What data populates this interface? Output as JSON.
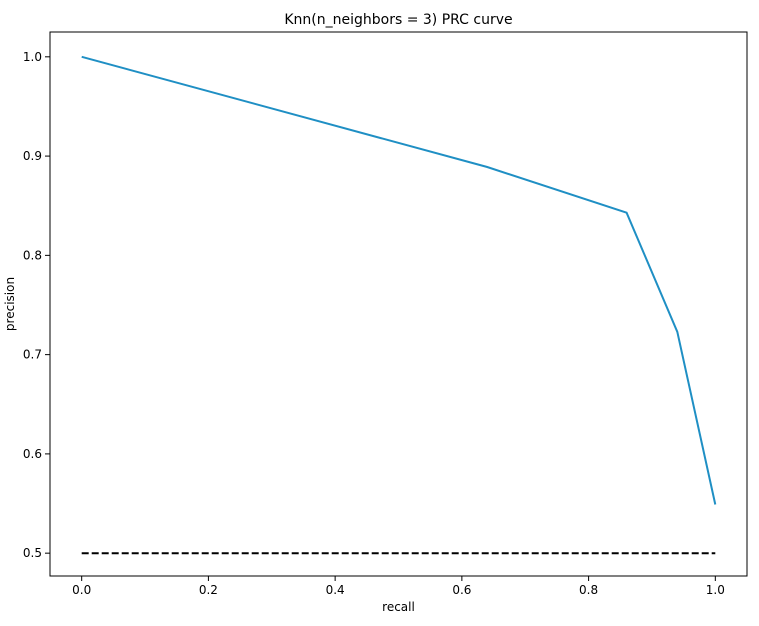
{
  "chart_data": {
    "type": "line",
    "title": "Knn(n_neighbors = 3) PRC curve",
    "xlabel": "recall",
    "ylabel": "precision",
    "xlim": [
      -0.05,
      1.05
    ],
    "ylim": [
      0.477,
      1.025
    ],
    "xticks": [
      0.0,
      0.2,
      0.4,
      0.6,
      0.8,
      1.0
    ],
    "xtick_labels": [
      "0.0",
      "0.2",
      "0.4",
      "0.6",
      "0.8",
      "1.0"
    ],
    "yticks": [
      0.5,
      0.6,
      0.7,
      0.8,
      0.9,
      1.0
    ],
    "ytick_labels": [
      "0.5",
      "0.6",
      "0.7",
      "0.8",
      "0.9",
      "1.0"
    ],
    "grid": false,
    "legend": false,
    "series": [
      {
        "style": "solid",
        "color": "#1f8fc4",
        "x": [
          0.0,
          0.64,
          0.86,
          0.94,
          1.0
        ],
        "y": [
          1.0,
          0.889,
          0.843,
          0.723,
          0.549
        ]
      },
      {
        "style": "dashed",
        "color": "#000000",
        "x": [
          0.0,
          1.0
        ],
        "y": [
          0.5,
          0.5
        ]
      }
    ]
  }
}
